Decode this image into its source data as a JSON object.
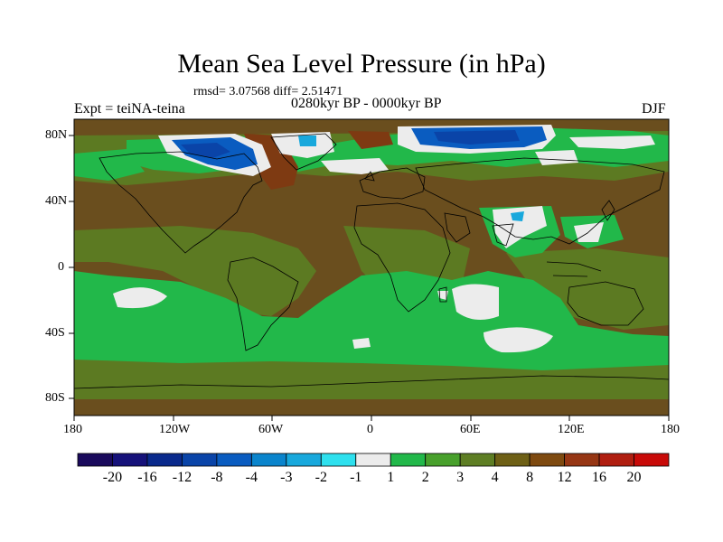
{
  "title": "Mean Sea Level Pressure (in hPa)",
  "stats": "rmsd= 3.07568  diff= 2.51471",
  "period": "0280kyr BP - 0000kyr BP",
  "experiment": "Expt = teiNA-teina",
  "season": "DJF",
  "lat_labels": [
    "80N",
    "40N",
    "0",
    "40S",
    "80S"
  ],
  "lon_labels": [
    "180",
    "120W",
    "60W",
    "0",
    "60E",
    "120E",
    "180"
  ],
  "colorbar": {
    "labels": [
      "-20",
      "-16",
      "-12",
      "-8",
      "-4",
      "-3",
      "-2",
      "-1",
      "1",
      "2",
      "3",
      "4",
      "8",
      "12",
      "16",
      "20"
    ],
    "colors": [
      "#1a0a5c",
      "#16127a",
      "#0a2a8c",
      "#0a44a8",
      "#0a5cc0",
      "#0a84cc",
      "#18a8dc",
      "#2ee0ee",
      "#ececec",
      "#22b84a",
      "#48a02c",
      "#5e7e24",
      "#6e6016",
      "#7e4a10",
      "#963614",
      "#b01e10",
      "#c80a08"
    ]
  },
  "map_colors": {
    "dark_brown": "#6a4e1e",
    "olive": "#5c7a22",
    "green": "#22b84a",
    "white": "#ececec",
    "deep_blue": "#0a44a8",
    "blue": "#0a5cc0",
    "light_blue": "#18a8dc",
    "red_brown": "#7e3a12"
  }
}
